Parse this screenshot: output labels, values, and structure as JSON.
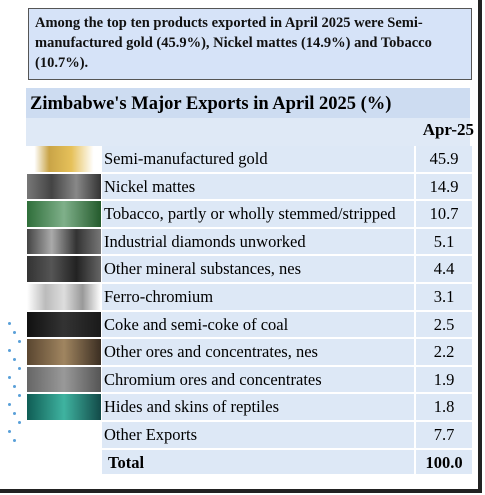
{
  "callout": "Among the top ten products exported in April 2025 were Semi-manufactured gold (45.9%), Nickel mattes (14.9%) and Tobacco (10.7%).",
  "table": {
    "title": "Zimbabwe's Major Exports in April 2025 (%)",
    "column_header": "Apr-25",
    "rows": [
      [
        "Semi-manufactured gold",
        "45.9"
      ],
      [
        "Nickel mattes",
        "14.9"
      ],
      [
        "Tobacco, partly or wholly stemmed/stripped",
        "10.7"
      ],
      [
        "Industrial diamonds unworked",
        "5.1"
      ],
      [
        "Other mineral substances, nes",
        "4.4"
      ],
      [
        "Ferro-chromium",
        "3.1"
      ],
      [
        "Coke and semi-coke of coal",
        "2.5"
      ],
      [
        "Other ores and concentrates, nes",
        "2.2"
      ],
      [
        "Chromium ores and concentrates",
        "1.9"
      ],
      [
        "Hides and skins of reptiles",
        "1.8"
      ],
      [
        "Other Exports",
        "7.7"
      ]
    ],
    "total": [
      "Total",
      "100.0"
    ]
  }
}
